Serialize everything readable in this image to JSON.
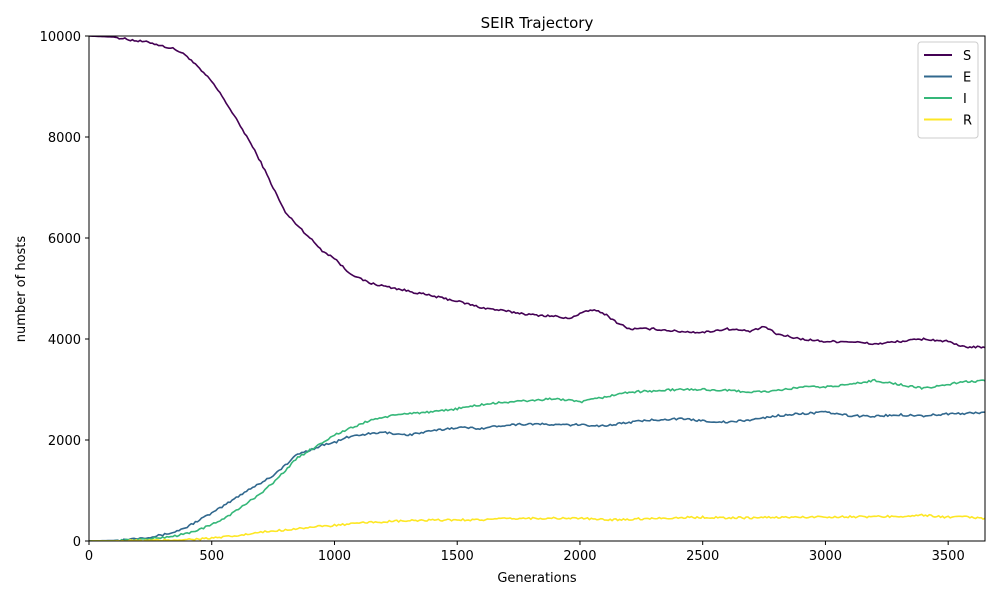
{
  "chart_data": {
    "type": "line",
    "title": "SEIR Trajectory",
    "xlabel": "Generations",
    "ylabel": "number of hosts",
    "xlim": [
      0,
      3650
    ],
    "ylim": [
      0,
      10000
    ],
    "xticks": [
      0,
      500,
      1000,
      1500,
      2000,
      2500,
      3000,
      3500
    ],
    "yticks": [
      0,
      2000,
      4000,
      6000,
      8000,
      10000
    ],
    "grid": false,
    "legend_position": "top-right",
    "series": [
      {
        "name": "S",
        "color": "#440154",
        "x": [
          0,
          100,
          200,
          250,
          300,
          350,
          400,
          450,
          500,
          550,
          600,
          650,
          700,
          750,
          800,
          850,
          900,
          950,
          1000,
          1050,
          1100,
          1150,
          1200,
          1300,
          1400,
          1500,
          1600,
          1700,
          1800,
          1900,
          1950,
          2000,
          2050,
          2100,
          2150,
          2200,
          2300,
          2400,
          2500,
          2600,
          2700,
          2750,
          2800,
          2900,
          3000,
          3100,
          3200,
          3300,
          3400,
          3500,
          3550,
          3650
        ],
        "y": [
          10000,
          9980,
          9900,
          9870,
          9800,
          9740,
          9600,
          9350,
          9100,
          8750,
          8350,
          7950,
          7500,
          7000,
          6500,
          6250,
          6000,
          5750,
          5600,
          5350,
          5200,
          5100,
          5050,
          4950,
          4850,
          4750,
          4620,
          4550,
          4480,
          4450,
          4400,
          4500,
          4580,
          4500,
          4330,
          4200,
          4200,
          4150,
          4130,
          4200,
          4150,
          4250,
          4100,
          4000,
          3950,
          3950,
          3900,
          3950,
          4000,
          3950,
          3850,
          3830
        ]
      },
      {
        "name": "E",
        "color": "#31688e",
        "x": [
          0,
          100,
          150,
          200,
          250,
          300,
          350,
          400,
          450,
          500,
          550,
          600,
          650,
          700,
          750,
          800,
          850,
          900,
          950,
          1000,
          1050,
          1100,
          1200,
          1300,
          1400,
          1500,
          1600,
          1700,
          1800,
          1900,
          2000,
          2100,
          2200,
          2300,
          2400,
          2500,
          2600,
          2700,
          2800,
          2900,
          3000,
          3100,
          3200,
          3300,
          3400,
          3500,
          3550,
          3650
        ],
        "y": [
          0,
          10,
          30,
          60,
          80,
          120,
          180,
          280,
          420,
          550,
          700,
          860,
          1020,
          1150,
          1300,
          1500,
          1720,
          1800,
          1900,
          1950,
          2050,
          2100,
          2150,
          2100,
          2180,
          2250,
          2230,
          2300,
          2320,
          2300,
          2300,
          2280,
          2350,
          2400,
          2420,
          2380,
          2350,
          2400,
          2480,
          2520,
          2550,
          2480,
          2470,
          2500,
          2480,
          2520,
          2520,
          2550
        ]
      },
      {
        "name": "I",
        "color": "#35b779",
        "x": [
          0,
          100,
          150,
          200,
          250,
          300,
          350,
          400,
          450,
          500,
          550,
          600,
          650,
          700,
          750,
          800,
          850,
          900,
          950,
          1000,
          1050,
          1100,
          1150,
          1200,
          1300,
          1400,
          1500,
          1600,
          1700,
          1800,
          1900,
          2000,
          2100,
          2200,
          2300,
          2400,
          2500,
          2600,
          2700,
          2800,
          2900,
          3000,
          3100,
          3200,
          3300,
          3400,
          3500,
          3550,
          3650
        ],
        "y": [
          0,
          5,
          15,
          30,
          45,
          70,
          100,
          150,
          230,
          320,
          450,
          600,
          770,
          950,
          1150,
          1400,
          1650,
          1800,
          1950,
          2100,
          2200,
          2300,
          2400,
          2450,
          2530,
          2550,
          2620,
          2700,
          2750,
          2780,
          2820,
          2750,
          2850,
          2950,
          2970,
          3000,
          3000,
          2980,
          2950,
          2970,
          3050,
          3050,
          3100,
          3180,
          3100,
          3020,
          3100,
          3150,
          3170
        ]
      },
      {
        "name": "R",
        "color": "#fde725",
        "x": [
          0,
          200,
          300,
          400,
          500,
          600,
          700,
          750,
          800,
          850,
          900,
          950,
          1000,
          1050,
          1100,
          1150,
          1200,
          1300,
          1400,
          1500,
          1600,
          1700,
          1800,
          1900,
          2000,
          2100,
          2200,
          2300,
          2400,
          2500,
          2600,
          2700,
          2800,
          2900,
          3000,
          3100,
          3200,
          3300,
          3400,
          3500,
          3550,
          3650
        ],
        "y": [
          0,
          5,
          15,
          30,
          55,
          100,
          170,
          200,
          220,
          250,
          270,
          290,
          310,
          330,
          350,
          370,
          380,
          400,
          410,
          420,
          420,
          440,
          450,
          450,
          450,
          420,
          430,
          450,
          460,
          470,
          460,
          460,
          470,
          470,
          480,
          480,
          480,
          490,
          510,
          470,
          480,
          450
        ]
      }
    ]
  }
}
